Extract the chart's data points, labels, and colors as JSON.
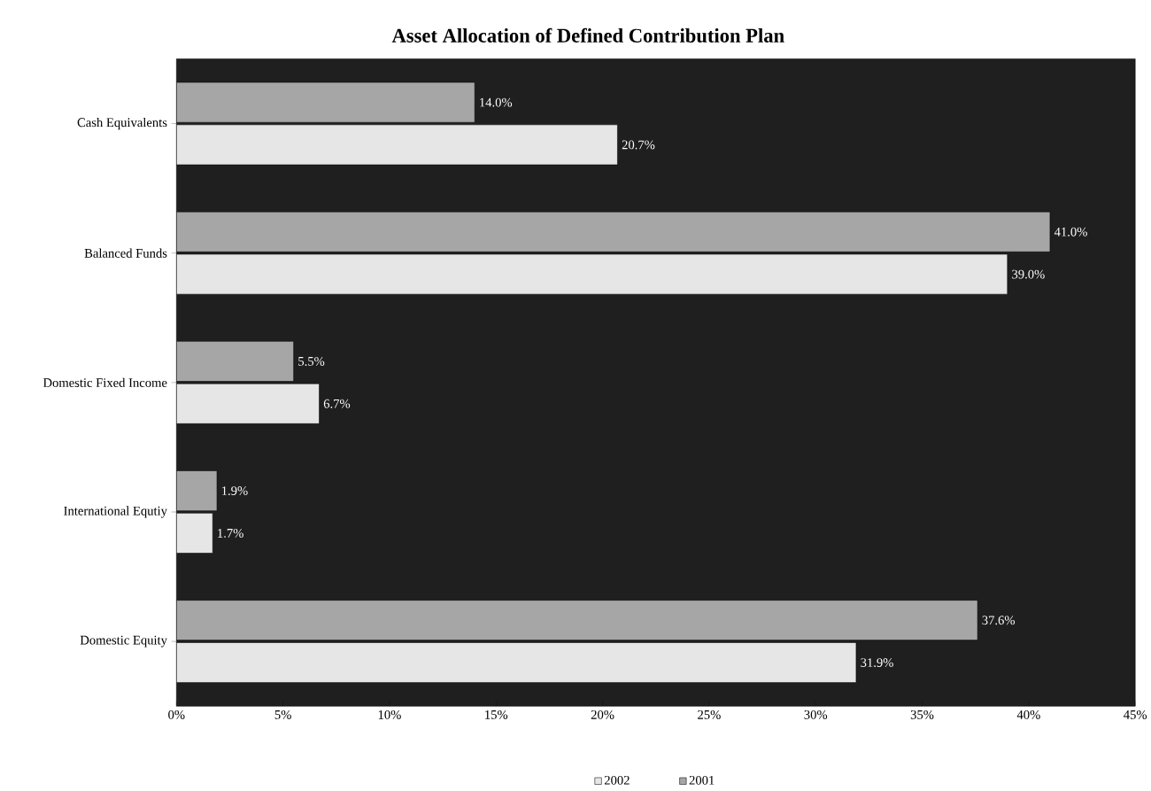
{
  "chart_data": {
    "type": "bar",
    "orientation": "horizontal",
    "title": "Asset Allocation of Defined Contribution Plan",
    "categories": [
      "Cash Equivalents",
      "Balanced Funds",
      "Domestic Fixed Income",
      "International Equtiy",
      "Domestic Equity"
    ],
    "series": [
      {
        "name": "2002",
        "color": "#e6e6e6",
        "values": [
          20.7,
          39.0,
          6.7,
          1.7,
          31.9
        ],
        "value_labels": [
          "20.7%",
          "39.0%",
          "6.7%",
          "1.7%",
          "31.9%"
        ]
      },
      {
        "name": "2001",
        "color": "#a6a6a6",
        "values": [
          14.0,
          41.0,
          5.5,
          1.9,
          37.6
        ],
        "value_labels": [
          "14.0%",
          "41.0%",
          "5.5%",
          "1.9%",
          "37.6%"
        ]
      }
    ],
    "xlim": [
      0,
      45
    ],
    "xticks": [
      {
        "value": 0,
        "label": "0%"
      },
      {
        "value": 5,
        "label": "5%"
      },
      {
        "value": 10,
        "label": "10%"
      },
      {
        "value": 15,
        "label": "15%"
      },
      {
        "value": 20,
        "label": "20%"
      },
      {
        "value": 25,
        "label": "25%"
      },
      {
        "value": 30,
        "label": "30%"
      },
      {
        "value": 35,
        "label": "35%"
      },
      {
        "value": 40,
        "label": "40%"
      },
      {
        "value": 45,
        "label": "45%"
      }
    ],
    "grid": false,
    "legend": "bottom"
  }
}
